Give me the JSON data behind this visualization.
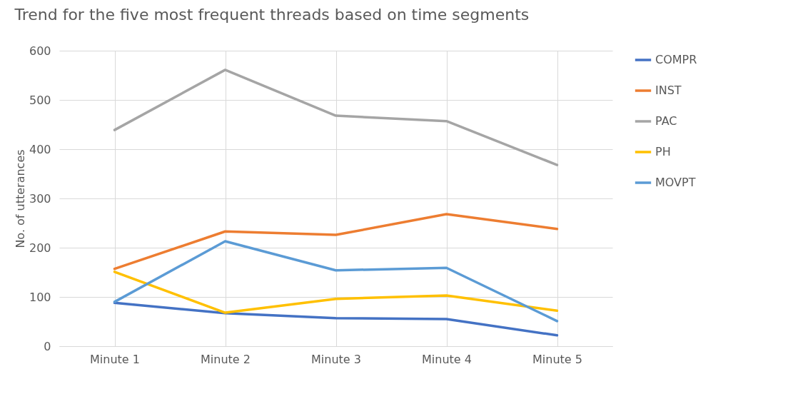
{
  "chart_data": {
    "type": "line",
    "title": "Trend for the five most frequent threads based on time segments",
    "ylabel": "No. of utterances",
    "categories": [
      "Minute 1",
      "Minute 2",
      "Minute 3",
      "Minute 4",
      "Minute 5"
    ],
    "series": [
      {
        "name": "COMPR",
        "color": "#4472c4",
        "values": [
          88,
          67,
          57,
          55,
          22
        ]
      },
      {
        "name": "INST",
        "color": "#ed7d31",
        "values": [
          157,
          233,
          226,
          268,
          238
        ]
      },
      {
        "name": "PAC",
        "color": "#a5a5a5",
        "values": [
          439,
          561,
          468,
          457,
          368
        ]
      },
      {
        "name": "PH",
        "color": "#ffc000",
        "values": [
          151,
          68,
          96,
          103,
          72
        ]
      },
      {
        "name": "MOVPT",
        "color": "#5b9bd5",
        "values": [
          90,
          213,
          154,
          159,
          51
        ]
      }
    ],
    "ylim": [
      0,
      600
    ],
    "yticks": [
      0,
      100,
      200,
      300,
      400,
      500,
      600
    ],
    "grid": true,
    "legend": "right",
    "marker": "none",
    "line_style": "solid"
  }
}
